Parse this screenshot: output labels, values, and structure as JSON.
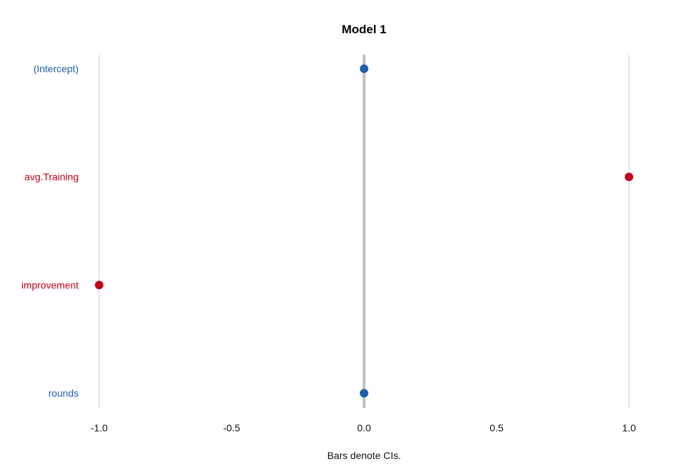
{
  "chart_data": {
    "type": "scatter",
    "title": "Model 1",
    "xlabel": "Bars denote CIs.",
    "ylabel": "",
    "xlim": [
      -1.1,
      1.1
    ],
    "x_ticks": [
      -1.0,
      -0.5,
      0.0,
      0.5,
      1.0
    ],
    "x_tick_labels": [
      "-1.0",
      "-0.5",
      "0.0",
      "0.5",
      "1.0"
    ],
    "grid_major_x": [
      -1.0,
      1.0
    ],
    "reference_line_x": 0.0,
    "categories": [
      "(Intercept)",
      "avg.Training",
      "improvement",
      "rounds"
    ],
    "values": [
      0.0,
      1.0,
      -1.0,
      0.0
    ],
    "colors": {
      "positive": "#1f5fa8",
      "negative": "#c0001b",
      "reference_line": "#c0c0c0",
      "grid": "#c8c8c8"
    },
    "point_colors": [
      "positive",
      "negative",
      "negative",
      "positive"
    ]
  }
}
